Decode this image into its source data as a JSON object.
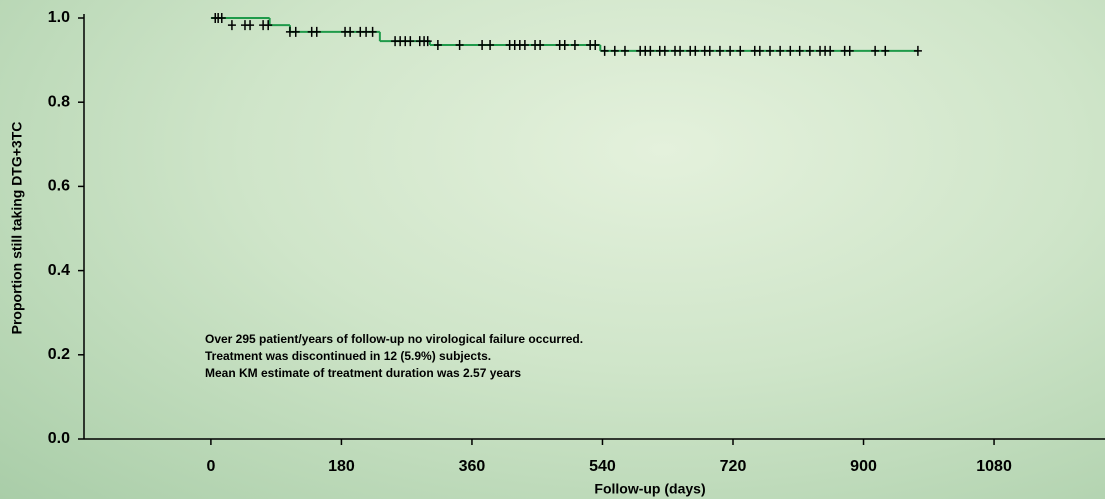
{
  "chart_data": {
    "type": "step",
    "x_label": "Follow-up (days)",
    "y_label": "Proportion still taking DTG+3TC",
    "x": [
      0,
      81,
      109,
      233,
      302,
      537,
      975
    ],
    "values": [
      1.0,
      0.983,
      0.967,
      0.945,
      0.936,
      0.922,
      0.922
    ],
    "color": "#1f9a4a",
    "censored": {
      "color": "#000000",
      "x": [
        6,
        10,
        15,
        29,
        47,
        54,
        72,
        79,
        109,
        117,
        139,
        146,
        185,
        192,
        206,
        214,
        223,
        254,
        261,
        268,
        275,
        288,
        294,
        299,
        313,
        343,
        374,
        385,
        412,
        419,
        426,
        433,
        447,
        454,
        481,
        488,
        502,
        523,
        530,
        543,
        557,
        571,
        592,
        599,
        606,
        619,
        626,
        640,
        647,
        661,
        668,
        681,
        688,
        702,
        716,
        730,
        750,
        757,
        771,
        785,
        799,
        812,
        826,
        840,
        847,
        854,
        874,
        881,
        916,
        930,
        975
      ],
      "values": [
        1.0,
        1.0,
        1.0,
        0.983,
        0.983,
        0.983,
        0.983,
        0.983,
        0.967,
        0.967,
        0.967,
        0.967,
        0.967,
        0.967,
        0.967,
        0.967,
        0.967,
        0.945,
        0.945,
        0.945,
        0.945,
        0.945,
        0.945,
        0.945,
        0.936,
        0.936,
        0.936,
        0.936,
        0.936,
        0.936,
        0.936,
        0.936,
        0.936,
        0.936,
        0.936,
        0.936,
        0.936,
        0.936,
        0.936,
        0.922,
        0.922,
        0.922,
        0.922,
        0.922,
        0.922,
        0.922,
        0.922,
        0.922,
        0.922,
        0.922,
        0.922,
        0.922,
        0.922,
        0.922,
        0.922,
        0.922,
        0.922,
        0.922,
        0.922,
        0.922,
        0.922,
        0.922,
        0.922,
        0.922,
        0.922,
        0.922,
        0.922,
        0.922,
        0.922,
        0.922,
        0.922
      ]
    },
    "xlim": [
      -175,
      1233
    ],
    "ylim": [
      0,
      1.0
    ],
    "xticks": [
      0,
      180,
      360,
      540,
      720,
      900,
      1080
    ],
    "yticks": [
      {
        "value": 0,
        "label": "0.0"
      },
      0.2,
      0.4,
      0.6,
      0.8,
      {
        "value": 1,
        "label": "1.0"
      }
    ],
    "annotations": [
      "Over 295 patient/years of follow-up no virological failure occurred.",
      "Treatment was discontinued in 12 (5.9%) subjects.",
      "Mean KM estimate of treatment duration was 2.57 years"
    ]
  }
}
